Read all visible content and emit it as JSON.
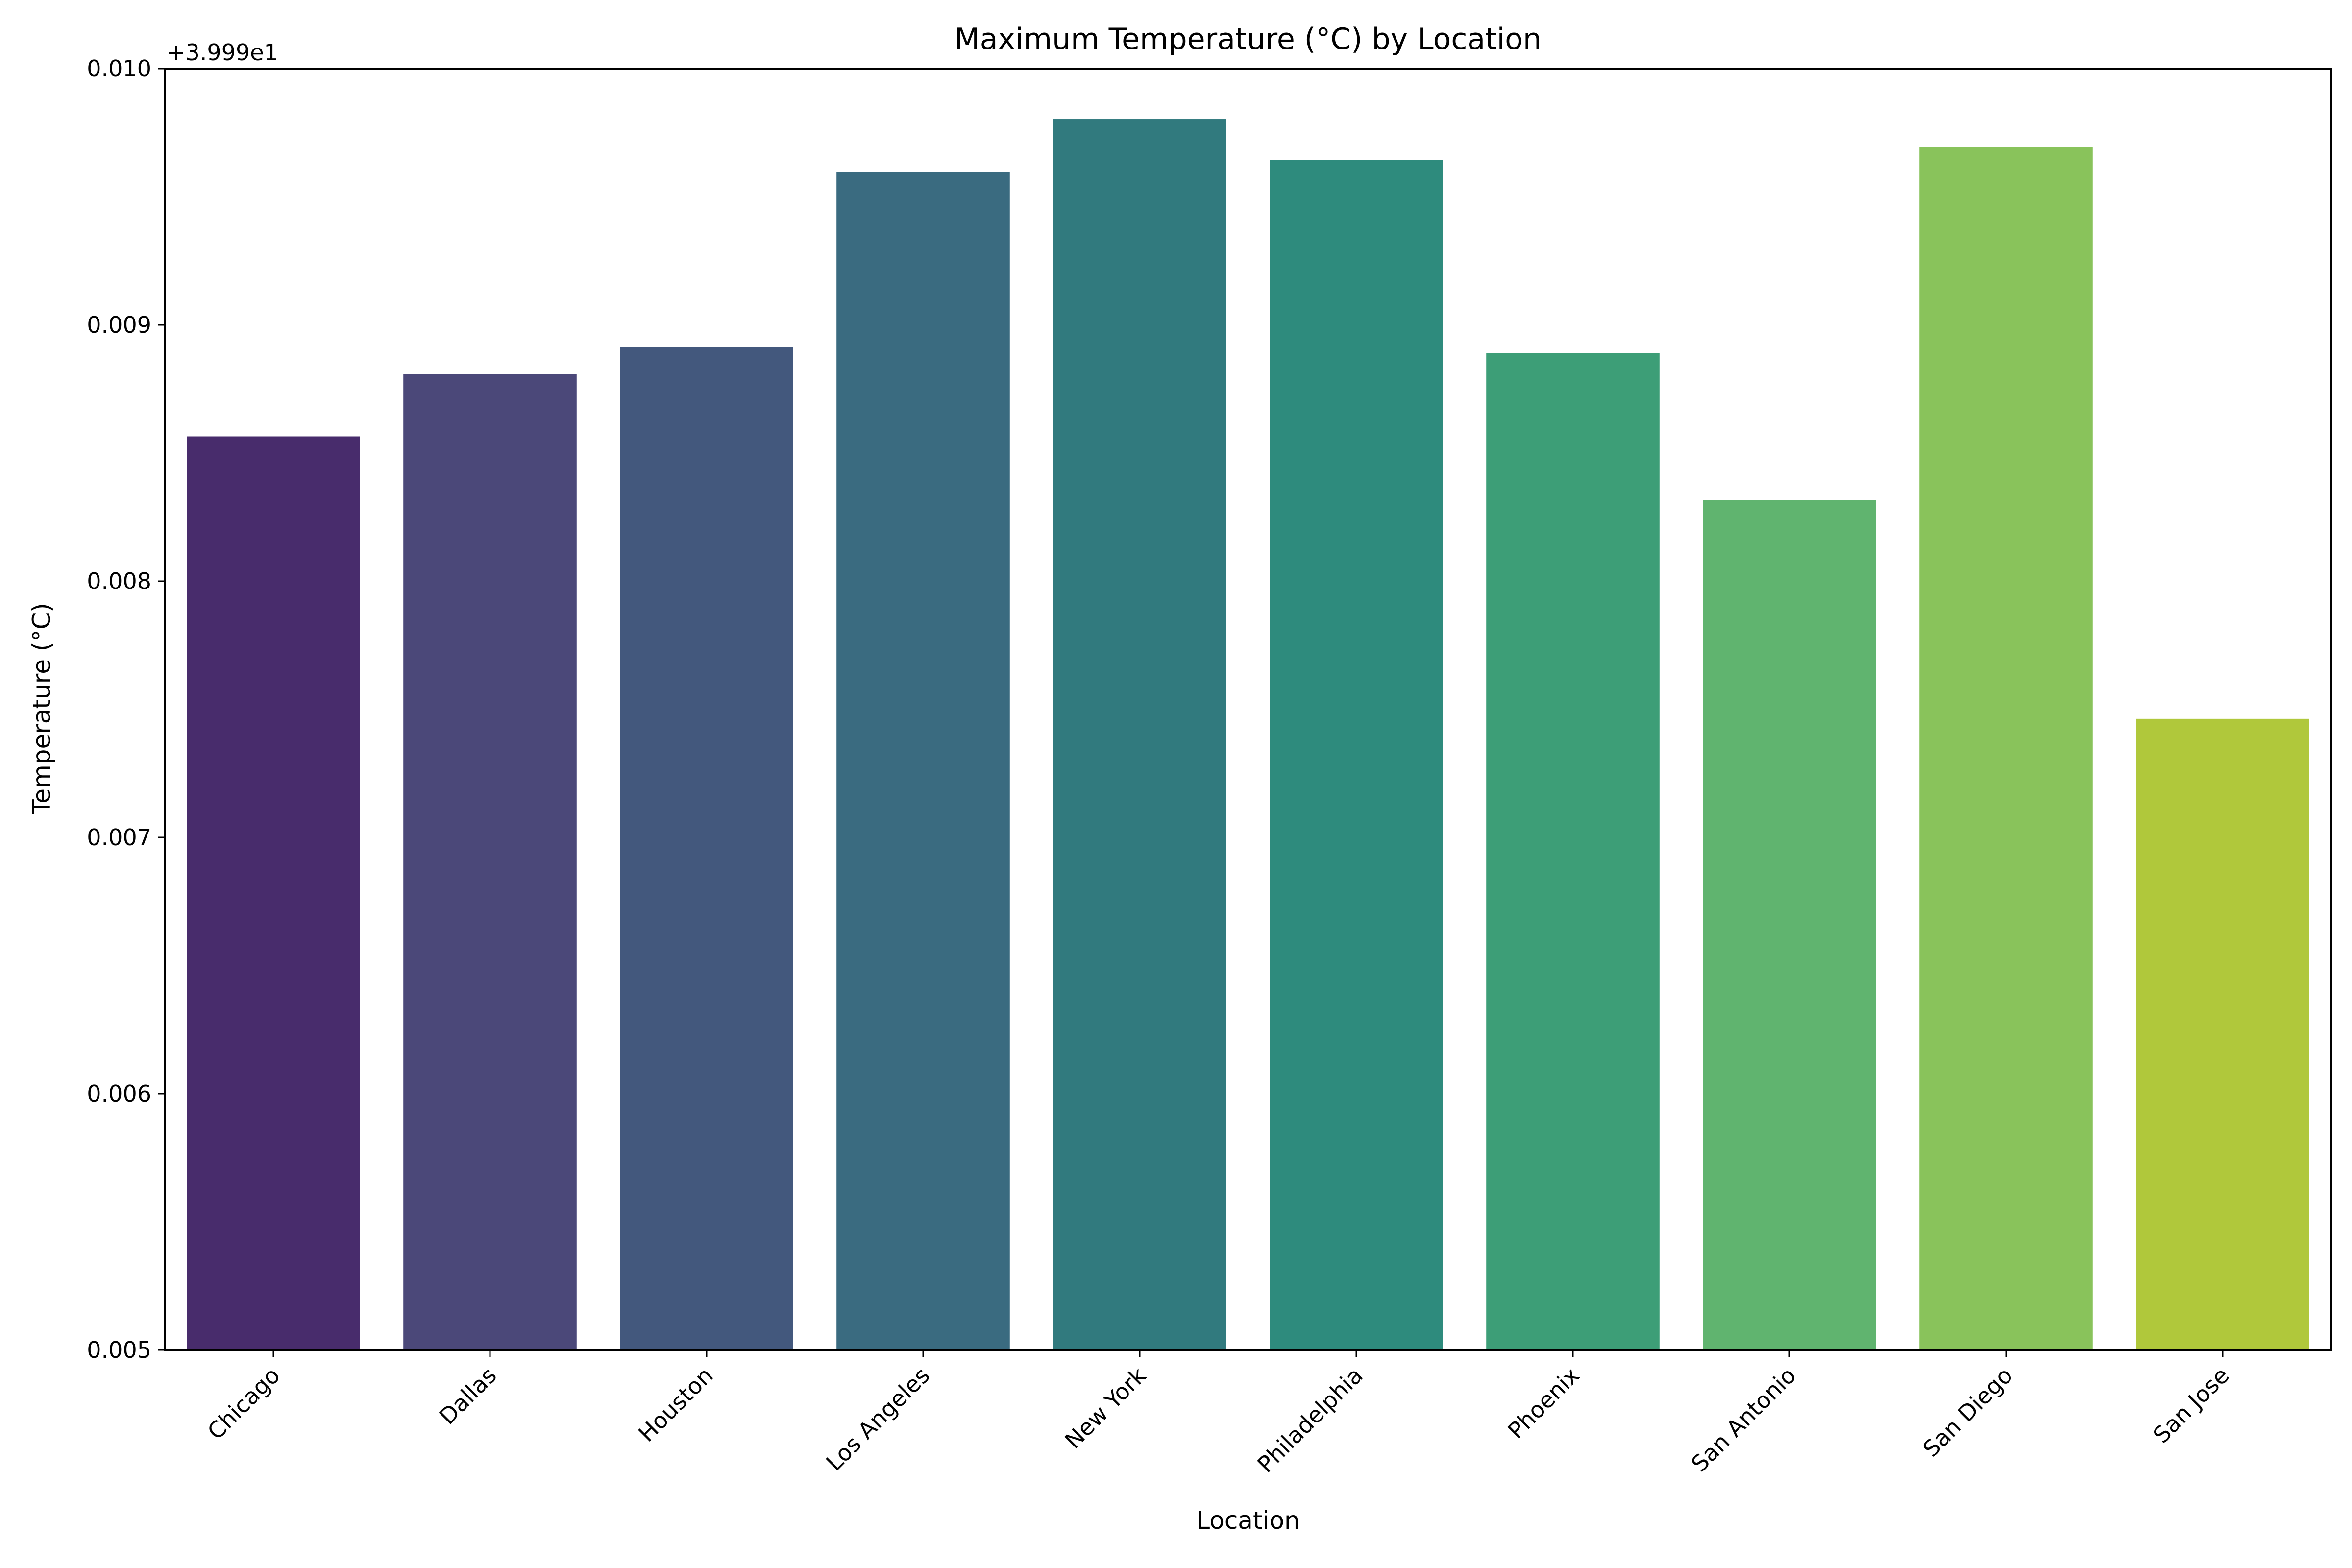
{
  "chart_data": {
    "type": "bar",
    "title": "Maximum Temperature (°C) by Location",
    "xlabel": "Location",
    "ylabel": "Temperature (°C)",
    "offset_label": "+3.999e1",
    "categories": [
      "Chicago",
      "Dallas",
      "Houston",
      "Los Angeles",
      "New York",
      "Philadelphia",
      "Phoenix",
      "San Antonio",
      "San Diego",
      "San Jose"
    ],
    "values": [
      0.008565,
      0.008808,
      0.008913,
      0.009597,
      0.009803,
      0.009644,
      0.00889,
      0.008317,
      0.009694,
      0.007463
    ],
    "colors": [
      "#482c6c",
      "#4b4879",
      "#43587d",
      "#3a6b80",
      "#317a7e",
      "#2e8b7d",
      "#3d9e77",
      "#60b46f",
      "#89c35b",
      "#b0c83b"
    ],
    "ylim": [
      0.005,
      0.01
    ],
    "yticks": [
      "0.005",
      "0.006",
      "0.007",
      "0.008",
      "0.009",
      "0.010"
    ],
    "grid": false,
    "legend": "none"
  }
}
